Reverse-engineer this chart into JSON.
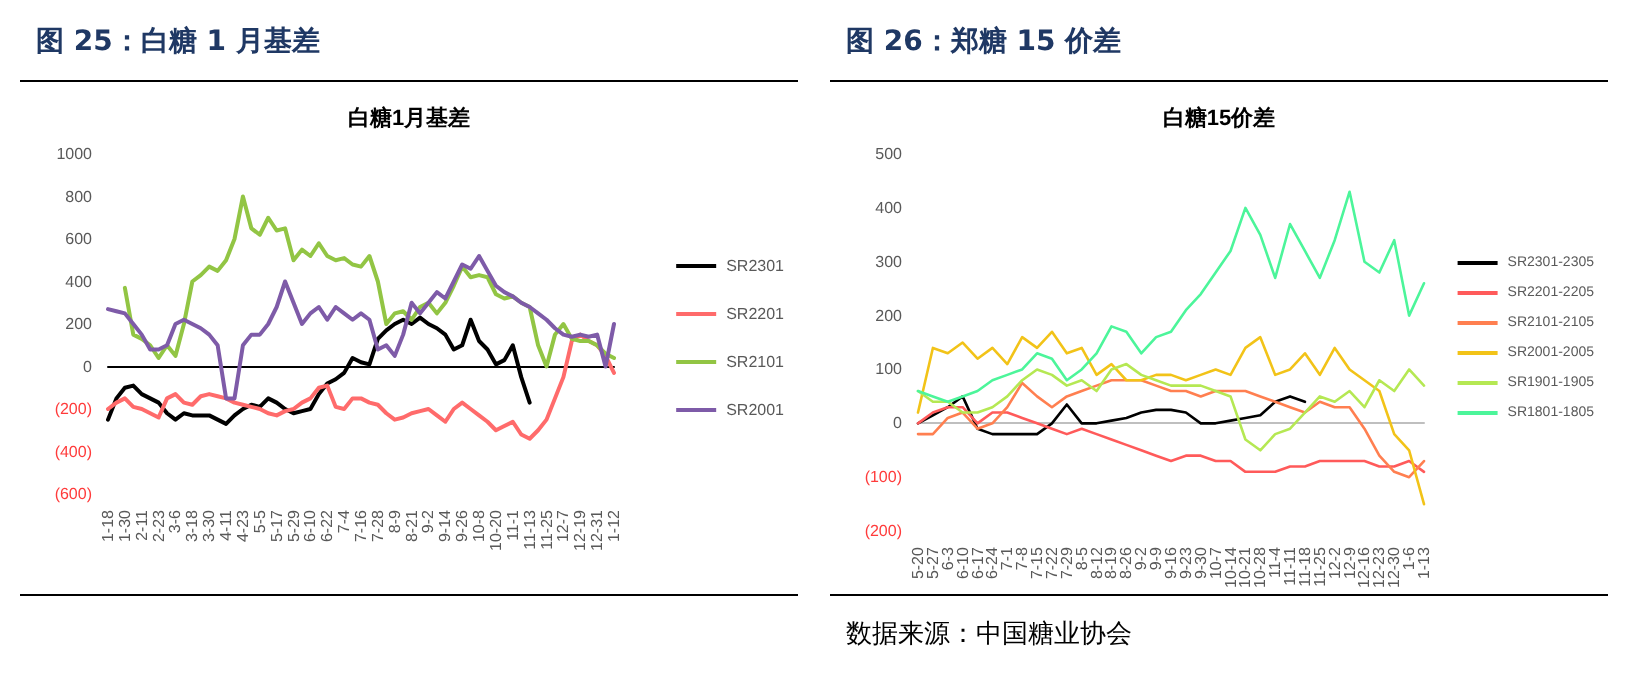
{
  "chart_data": [
    {
      "type": "line",
      "title": "图 25：白糖 1 月基差",
      "subtitle": "白糖1月基差",
      "legend": "right",
      "marker": "none",
      "line_style": "solid",
      "categories": [
        "1-18",
        null,
        "1-30",
        null,
        "2-11",
        null,
        "2-23",
        null,
        "3-6",
        null,
        "3-18",
        null,
        "3-30",
        null,
        "4-11",
        null,
        "4-23",
        null,
        "5-5",
        null,
        "5-17",
        null,
        "5-29",
        null,
        "6-10",
        null,
        "6-22",
        null,
        "7-4",
        null,
        "7-16",
        null,
        "7-28",
        null,
        "8-9",
        null,
        "8-21",
        null,
        "9-2",
        null,
        "9-14",
        null,
        "9-26",
        null,
        "10-8",
        null,
        "10-20",
        null,
        "11-1",
        null,
        "11-13",
        null,
        "11-25",
        null,
        "12-7",
        null,
        "12-19",
        null,
        "12-31",
        null,
        "1-12"
      ],
      "ylim": [
        -600,
        1000
      ],
      "yticks": [
        {
          "value": -600,
          "label": "(600)"
        },
        {
          "value": -400,
          "label": "(400)"
        },
        {
          "value": -200,
          "label": "(200)"
        },
        0,
        200,
        400,
        600,
        800,
        1000
      ],
      "series": [
        {
          "name": "SR2301",
          "color": "#000000",
          "values": [
            -250,
            -150,
            -100,
            -90,
            -130,
            -150,
            -170,
            -220,
            -250,
            -220,
            -230,
            -230,
            -230,
            -250,
            -270,
            -230,
            -200,
            -180,
            -190,
            -150,
            -170,
            -200,
            -220,
            -210,
            -200,
            -130,
            -80,
            -60,
            -30,
            40,
            20,
            10,
            130,
            170,
            200,
            220,
            200,
            230,
            200,
            180,
            150,
            80,
            100,
            220,
            120,
            80,
            10,
            30,
            100,
            -50,
            -170,
            null,
            null,
            null,
            null,
            null,
            null,
            null,
            null,
            null,
            null
          ]
        },
        {
          "name": "SR2201",
          "color": "#ff6b6b",
          "values": [
            -200,
            -170,
            -150,
            -190,
            -200,
            -220,
            -240,
            -150,
            -130,
            -170,
            -180,
            -140,
            -130,
            -140,
            -150,
            -170,
            -180,
            -190,
            -200,
            -220,
            -230,
            -210,
            -200,
            -170,
            -150,
            -100,
            -90,
            -190,
            -200,
            -150,
            -150,
            -170,
            -180,
            -220,
            -250,
            -240,
            -220,
            -210,
            -200,
            -230,
            -260,
            -200,
            -170,
            -200,
            -230,
            -260,
            -300,
            -280,
            -260,
            -320,
            -340,
            -300,
            -250,
            -150,
            -50,
            120,
            150,
            120,
            100,
            50,
            -30
          ]
        },
        {
          "name": "SR2101",
          "color": "#92c544",
          "values": [
            null,
            null,
            370,
            150,
            130,
            100,
            40,
            100,
            50,
            200,
            400,
            430,
            470,
            450,
            500,
            600,
            800,
            650,
            620,
            700,
            640,
            650,
            500,
            550,
            520,
            580,
            520,
            500,
            510,
            480,
            470,
            520,
            400,
            200,
            250,
            260,
            220,
            280,
            300,
            250,
            300,
            380,
            470,
            420,
            430,
            420,
            340,
            320,
            330,
            300,
            280,
            100,
            0,
            150,
            200,
            130,
            120,
            120,
            100,
            60,
            40
          ]
        },
        {
          "name": "SR2001",
          "color": "#7e5ba8",
          "values": [
            270,
            260,
            250,
            200,
            150,
            80,
            80,
            100,
            200,
            220,
            200,
            180,
            150,
            100,
            -150,
            -150,
            100,
            150,
            150,
            200,
            280,
            400,
            300,
            200,
            250,
            280,
            220,
            280,
            250,
            220,
            250,
            220,
            80,
            100,
            50,
            150,
            300,
            250,
            300,
            350,
            320,
            400,
            480,
            460,
            520,
            450,
            380,
            350,
            330,
            300,
            280,
            250,
            220,
            180,
            150,
            140,
            150,
            140,
            150,
            0,
            200
          ]
        }
      ]
    },
    {
      "type": "line",
      "title": "图 26：郑糖 15 价差",
      "subtitle": "白糖15价差",
      "legend": "right",
      "marker": "none",
      "line_style": "solid",
      "annotations": [
        "数据来源：中国糖业协会"
      ],
      "categories": [
        "5-20",
        "5-27",
        "6-3",
        "6-10",
        "6-17",
        "6-24",
        "7-1",
        "7-8",
        "7-15",
        "7-22",
        "7-29",
        "8-5",
        "8-12",
        "8-19",
        "8-26",
        "9-2",
        "9-9",
        "9-16",
        "9-23",
        "9-30",
        "10-7",
        "10-14",
        "10-21",
        "10-28",
        "11-4",
        "11-11",
        "11-18",
        "11-25",
        "12-2",
        "12-9",
        "12-16",
        "12-23",
        "12-30",
        "1-6",
        "1-13"
      ],
      "ylim": [
        -200,
        500
      ],
      "yticks": [
        {
          "value": -200,
          "label": "(200)"
        },
        {
          "value": -100,
          "label": "(100)"
        },
        0,
        100,
        200,
        300,
        400,
        500
      ],
      "series": [
        {
          "name": "SR2301-2305",
          "color": "#000000",
          "values": [
            0,
            15,
            30,
            50,
            -10,
            -20,
            -20,
            -20,
            -20,
            0,
            35,
            0,
            0,
            5,
            10,
            20,
            25,
            25,
            20,
            0,
            0,
            5,
            10,
            15,
            40,
            50,
            40,
            null,
            null,
            null,
            null,
            null,
            null,
            null,
            null
          ]
        },
        {
          "name": "SR2201-2205",
          "color": "#ff5a5a",
          "values": [
            0,
            20,
            30,
            30,
            0,
            20,
            20,
            10,
            0,
            -10,
            -20,
            -10,
            -20,
            -30,
            -40,
            -50,
            -60,
            -70,
            -60,
            -60,
            -70,
            -70,
            -90,
            -90,
            -90,
            -80,
            -80,
            -70,
            -70,
            -70,
            -70,
            -80,
            -80,
            -70,
            -90
          ]
        },
        {
          "name": "SR2101-2105",
          "color": "#ff7f50",
          "values": [
            -20,
            -20,
            10,
            20,
            -10,
            0,
            30,
            75,
            50,
            30,
            50,
            60,
            70,
            80,
            80,
            80,
            70,
            60,
            60,
            50,
            60,
            60,
            60,
            50,
            40,
            30,
            20,
            40,
            30,
            30,
            -10,
            -60,
            -90,
            -100,
            -70
          ]
        },
        {
          "name": "SR2001-2005",
          "color": "#f2c318",
          "values": [
            20,
            140,
            130,
            150,
            120,
            140,
            110,
            160,
            140,
            170,
            130,
            140,
            90,
            110,
            80,
            80,
            90,
            90,
            80,
            90,
            100,
            90,
            140,
            160,
            90,
            100,
            130,
            90,
            140,
            100,
            80,
            60,
            -20,
            -50,
            -150
          ]
        },
        {
          "name": "SR1901-1905",
          "color": "#b5e853",
          "values": [
            60,
            40,
            40,
            20,
            20,
            30,
            50,
            80,
            100,
            90,
            70,
            80,
            60,
            100,
            110,
            90,
            80,
            70,
            70,
            70,
            60,
            50,
            -30,
            -50,
            -20,
            -10,
            20,
            50,
            40,
            60,
            30,
            80,
            60,
            100,
            70
          ]
        },
        {
          "name": "SR1801-1805",
          "color": "#4cf59a",
          "values": [
            60,
            50,
            40,
            50,
            60,
            80,
            90,
            100,
            130,
            120,
            80,
            100,
            130,
            180,
            170,
            130,
            160,
            170,
            210,
            240,
            280,
            320,
            400,
            350,
            270,
            370,
            320,
            270,
            340,
            430,
            300,
            280,
            340,
            200,
            260
          ]
        }
      ]
    }
  ]
}
